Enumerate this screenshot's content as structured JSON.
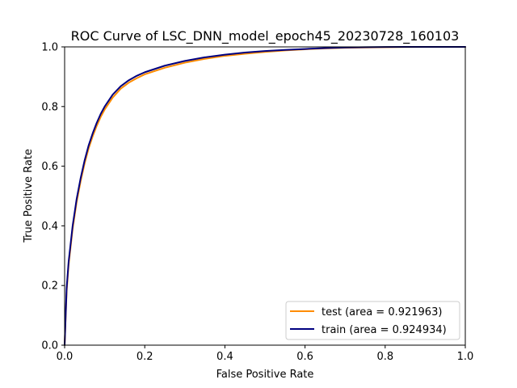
{
  "chart_data": {
    "type": "line",
    "title": "ROC Curve of LSC_DNN_model_epoch45_20230728_160103",
    "xlabel": "False Positive Rate",
    "ylabel": "True Positive Rate",
    "xlim": [
      0.0,
      1.0
    ],
    "ylim": [
      0.0,
      1.0
    ],
    "x_ticks": [
      "0.0",
      "0.2",
      "0.4",
      "0.6",
      "0.8",
      "1.0"
    ],
    "y_ticks": [
      "0.0",
      "0.2",
      "0.4",
      "0.6",
      "0.8",
      "1.0"
    ],
    "grid": false,
    "legend_position": "lower-right",
    "series": [
      {
        "name": "test (area = 0.921963)",
        "color": "#ff8c00",
        "x": [
          0.0,
          0.005,
          0.01,
          0.02,
          0.03,
          0.04,
          0.05,
          0.06,
          0.07,
          0.08,
          0.09,
          0.1,
          0.12,
          0.14,
          0.16,
          0.18,
          0.2,
          0.25,
          0.3,
          0.35,
          0.4,
          0.45,
          0.5,
          0.55,
          0.6,
          0.65,
          0.7,
          0.75,
          0.8,
          0.85,
          0.9,
          0.95,
          1.0
        ],
        "y": [
          0.0,
          0.18,
          0.27,
          0.39,
          0.48,
          0.55,
          0.61,
          0.66,
          0.7,
          0.735,
          0.765,
          0.79,
          0.83,
          0.86,
          0.88,
          0.895,
          0.908,
          0.93,
          0.947,
          0.96,
          0.97,
          0.977,
          0.983,
          0.988,
          0.992,
          0.995,
          0.997,
          0.998,
          0.999,
          0.9995,
          1.0,
          1.0,
          1.0
        ]
      },
      {
        "name": "train (area = 0.924934)",
        "color": "#000080",
        "x": [
          0.0,
          0.005,
          0.01,
          0.02,
          0.03,
          0.04,
          0.05,
          0.06,
          0.07,
          0.08,
          0.09,
          0.1,
          0.12,
          0.14,
          0.16,
          0.18,
          0.2,
          0.25,
          0.3,
          0.35,
          0.4,
          0.45,
          0.5,
          0.55,
          0.6,
          0.65,
          0.7,
          0.75,
          0.8,
          0.85,
          0.9,
          0.95,
          1.0
        ],
        "y": [
          0.0,
          0.19,
          0.28,
          0.4,
          0.49,
          0.56,
          0.62,
          0.67,
          0.71,
          0.745,
          0.775,
          0.8,
          0.84,
          0.868,
          0.888,
          0.903,
          0.915,
          0.937,
          0.953,
          0.965,
          0.974,
          0.981,
          0.986,
          0.99,
          0.993,
          0.996,
          0.998,
          0.999,
          0.9995,
          1.0,
          1.0,
          1.0,
          1.0
        ]
      }
    ]
  }
}
